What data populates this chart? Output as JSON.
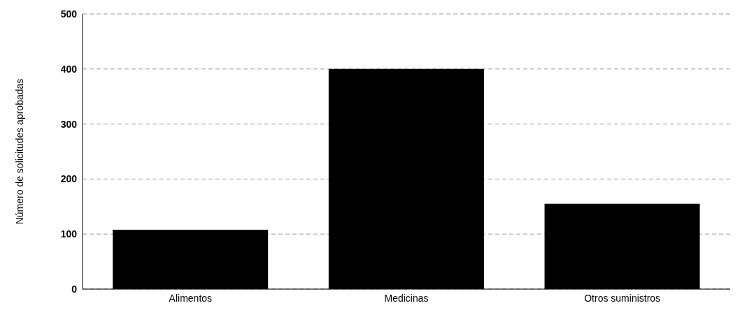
{
  "chart_data": {
    "type": "bar",
    "ylabel": "Número de solicitudes aprobadas",
    "categories": [
      "Alimentos",
      "Medicinas",
      "Otros suministros"
    ],
    "values": [
      108,
      400,
      155
    ],
    "color": "#000000",
    "ylim": [
      0,
      500
    ],
    "yticks": [
      0,
      100,
      200,
      300,
      400,
      500
    ],
    "grid": "y"
  }
}
